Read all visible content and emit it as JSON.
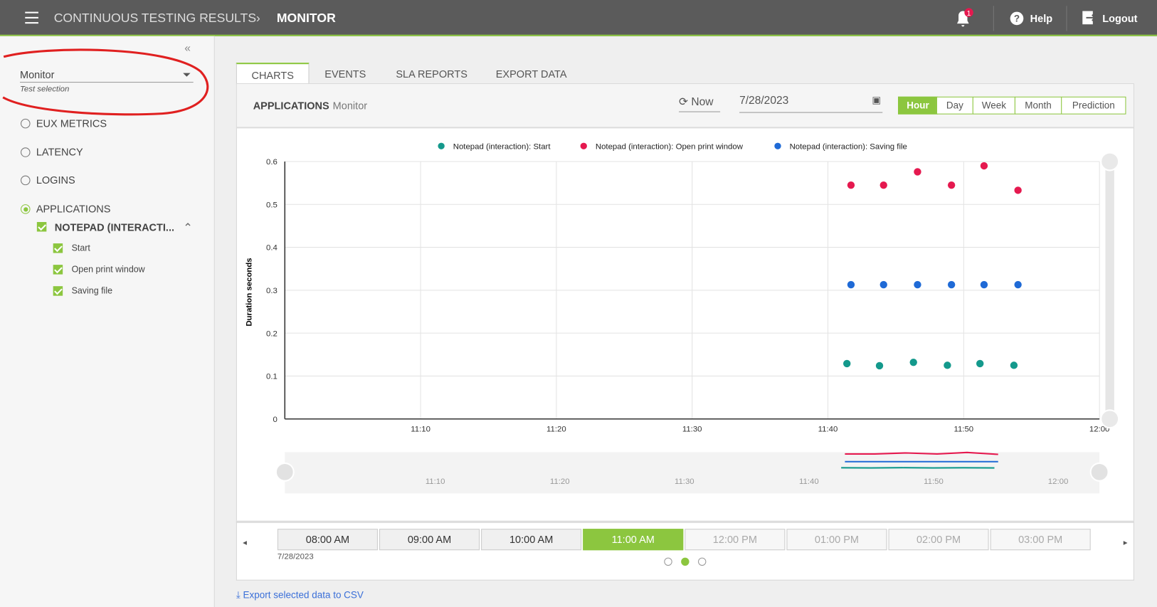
{
  "header": {
    "app_title": "CONTINUOUS TESTING RESULTS",
    "page_title": "MONITOR",
    "notifications": 1,
    "help": "Help",
    "logout": "Logout"
  },
  "sidebar": {
    "selection": "Monitor",
    "selection_hint": "Test selection",
    "metrics": [
      "EUX METRICS",
      "LATENCY",
      "LOGINS",
      "APPLICATIONS"
    ],
    "application": "NOTEPAD (INTERACTI...",
    "steps": [
      "Start",
      "Open print window",
      "Saving file"
    ]
  },
  "tabs": [
    "CHARTS",
    "EVENTS",
    "SLA REPORTS",
    "EXPORT DATA"
  ],
  "toolbar": {
    "section": "APPLICATIONS",
    "test": "Monitor",
    "now": "Now",
    "date": "7/28/2023",
    "ranges": [
      "Hour",
      "Day",
      "Week",
      "Month",
      "Prediction"
    ]
  },
  "chart_data": {
    "type": "scatter",
    "y_label": "Duration seconds",
    "grid": true,
    "xlim": [
      {
        "value": 660,
        "label": "11:00"
      },
      {
        "value": 720,
        "label": "12:00"
      }
    ],
    "xticks": [
      {
        "value": 670,
        "label": "11:10"
      },
      {
        "value": 680,
        "label": "11:20"
      },
      {
        "value": 690,
        "label": "11:30"
      },
      {
        "value": 700,
        "label": "11:40"
      },
      {
        "value": 710,
        "label": "11:50"
      },
      {
        "value": 720,
        "label": "12:00"
      }
    ],
    "ylim": [
      0,
      0.6
    ],
    "yticks": [
      0,
      0.1,
      0.2,
      0.3,
      0.4,
      0.5,
      0.6
    ],
    "series": [
      {
        "name": "Notepad (interaction): Start",
        "color": "#14998c",
        "x": [
          701.4,
          703.8,
          706.3,
          708.8,
          711.2,
          713.7
        ],
        "values": [
          0.129,
          0.124,
          0.132,
          0.125,
          0.129,
          0.125
        ]
      },
      {
        "name": "Notepad (interaction): Open print window",
        "color": "#e5194f",
        "x": [
          701.7,
          704.1,
          706.6,
          709.1,
          711.5,
          714.0
        ],
        "values": [
          0.545,
          0.545,
          0.576,
          0.545,
          0.59,
          0.533
        ]
      },
      {
        "name": "Notepad (interaction): Saving file",
        "color": "#1f6ad6",
        "x": [
          701.7,
          704.1,
          706.6,
          709.1,
          711.5,
          714.0
        ],
        "values": [
          0.313,
          0.313,
          0.313,
          0.313,
          0.313,
          0.313
        ]
      }
    ]
  },
  "timeline": {
    "slots": [
      "08:00 AM",
      "09:00 AM",
      "10:00 AM",
      "11:00 AM",
      "12:00 PM",
      "01:00 PM",
      "02:00 PM",
      "03:00 PM"
    ],
    "date": "7/28/2023"
  },
  "export": "Export selected data to CSV"
}
